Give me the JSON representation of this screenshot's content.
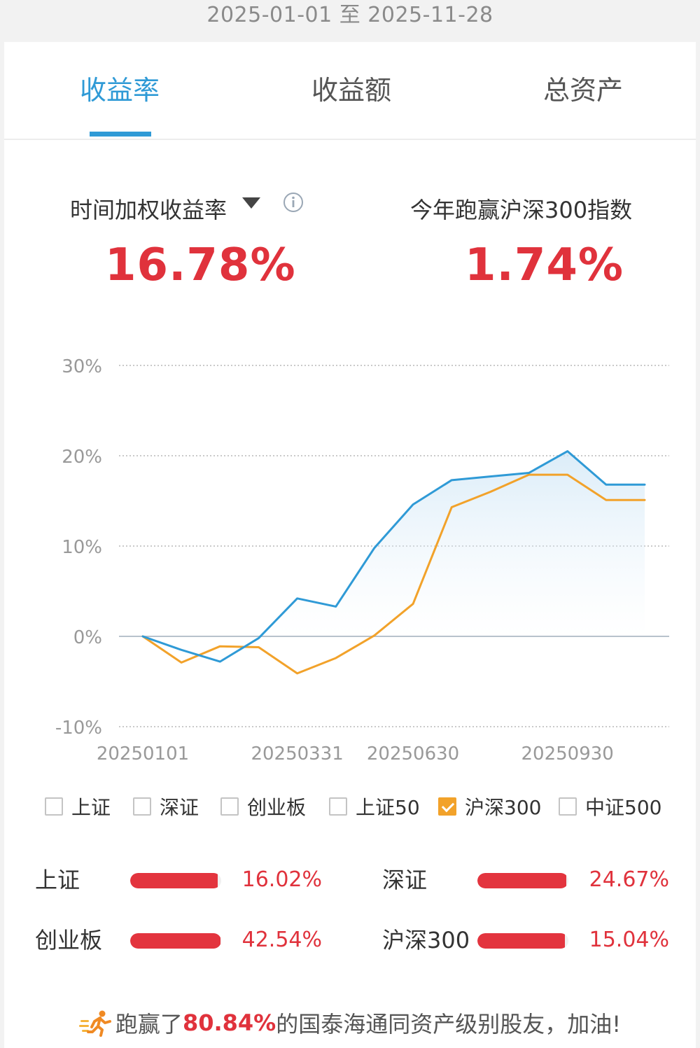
{
  "date_range": "2025-01-01 至 2025-11-28",
  "tabs": [
    {
      "label": "收益率",
      "active": true
    },
    {
      "label": "收益额",
      "active": false
    },
    {
      "label": "总资产",
      "active": false
    }
  ],
  "metrics": {
    "left_label": "时间加权收益率",
    "left_value": "16.78%",
    "right_label": "今年跑赢沪深300指数",
    "right_value": "1.74%"
  },
  "colors": {
    "accent": "#2f9ad6",
    "benchmark": "#f2a22a",
    "positive": "#e0323c"
  },
  "chart_data": {
    "type": "line",
    "x": [
      "20250101",
      "20250131",
      "20250228",
      "20250314",
      "20250331",
      "20250430",
      "20250530",
      "20250630",
      "20250731",
      "20250815",
      "20250829",
      "20250930",
      "20251031",
      "20251128"
    ],
    "x_tick_labels": [
      "20250101",
      "20250331",
      "20250630",
      "20250930"
    ],
    "y_tick_labels": [
      "30%",
      "20%",
      "10%",
      "0%",
      "-10%"
    ],
    "ylim": [
      -10,
      30
    ],
    "series": [
      {
        "values": [
          0,
          -1.5,
          -2.8,
          -0.2,
          4.2,
          3.3,
          9.8,
          14.6,
          17.3,
          17.7,
          18.1,
          20.5,
          16.8,
          16.8
        ],
        "color": "#2f9ad6"
      },
      {
        "values": [
          0,
          -2.9,
          -1.1,
          -1.2,
          -4.1,
          -2.4,
          0.1,
          3.6,
          14.3,
          16.0,
          17.9,
          17.9,
          15.1,
          15.1
        ],
        "color": "#f2a22a"
      }
    ],
    "grid": true
  },
  "legend": [
    {
      "label": "上证",
      "checked": false
    },
    {
      "label": "深证",
      "checked": false
    },
    {
      "label": "创业板",
      "checked": false
    },
    {
      "label": "上证50",
      "checked": false
    },
    {
      "label": "沪深300",
      "checked": true
    },
    {
      "label": "中证500",
      "checked": false
    }
  ],
  "comparisons": [
    {
      "name": "上证",
      "value": "16.02%",
      "fill": 0.96
    },
    {
      "name": "深证",
      "value": "24.67%",
      "fill": 0.98
    },
    {
      "name": "创业板",
      "value": "42.54%",
      "fill": 0.99
    },
    {
      "name": "沪深300",
      "value": "15.04%",
      "fill": 0.96
    }
  ],
  "footer": {
    "prefix": "跑赢了",
    "percent": "80.84%",
    "suffix": "的国泰海通同资产级别股友，加油!"
  }
}
